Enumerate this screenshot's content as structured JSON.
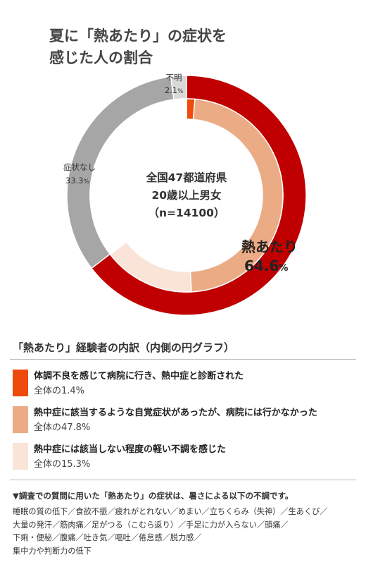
{
  "title_lines": [
    "夏に「熱あたり」の症状を",
    "感じた人の割合"
  ],
  "chart_data": [
    {
      "type": "pie",
      "ring": "outer",
      "slices": [
        {
          "label": "熱あたり",
          "value": 64.6,
          "value_text": "64.6",
          "unit": "%",
          "color": "#c00000"
        },
        {
          "label": "症状なし",
          "value": 33.3,
          "value_text": "33.3",
          "unit": "%",
          "color": "#a6a6a6"
        },
        {
          "label": "不明",
          "value": 2.1,
          "value_text": "2.1",
          "unit": "%",
          "color": "#d9d9d9"
        }
      ]
    },
    {
      "type": "pie",
      "ring": "inner",
      "slices": [
        {
          "value": 1.4,
          "color": "#ee4a0b"
        },
        {
          "value": 47.8,
          "color": "#ebab85"
        },
        {
          "value": 15.3,
          "color": "#fae3d7"
        },
        {
          "value": 35.5,
          "color": "#ffffff"
        }
      ]
    }
  ],
  "center_lines": [
    "全国47都道府県",
    "20歳以上男女",
    "（n=14100）"
  ],
  "breakdown": {
    "title": "「熱あたり」経験者の内訳（内側の円グラフ）",
    "items": [
      {
        "label": "体調不良を感じて病院に行き、熱中症と診断された",
        "sub": "全体の1.4%",
        "color": "#ee4a0b"
      },
      {
        "label": "熱中症に該当するような自覚症状があったが、病院には行かなかった",
        "sub": "全体の47.8%",
        "color": "#ebab85"
      },
      {
        "label": "熱中症には該当しない程度の軽い不調を感じた",
        "sub": "全体の15.3%",
        "color": "#fae3d7"
      }
    ]
  },
  "note": {
    "heading": "▼調査での質問に用いた「熱あたり」の症状は、暑さによる以下の不調です。",
    "lines": [
      "睡眠の質の低下／食欲不振／疲れがとれない／めまい／立ちくらみ（失神）／生あくび／",
      "大量の発汗／筋肉痛／足がつる（こむら返り）／手足に力が入らない／頭痛／",
      "下痢・便秘／腹痛／吐き気／嘔吐／倦怠感／脱力感／",
      "集中力や判断力の低下"
    ]
  }
}
